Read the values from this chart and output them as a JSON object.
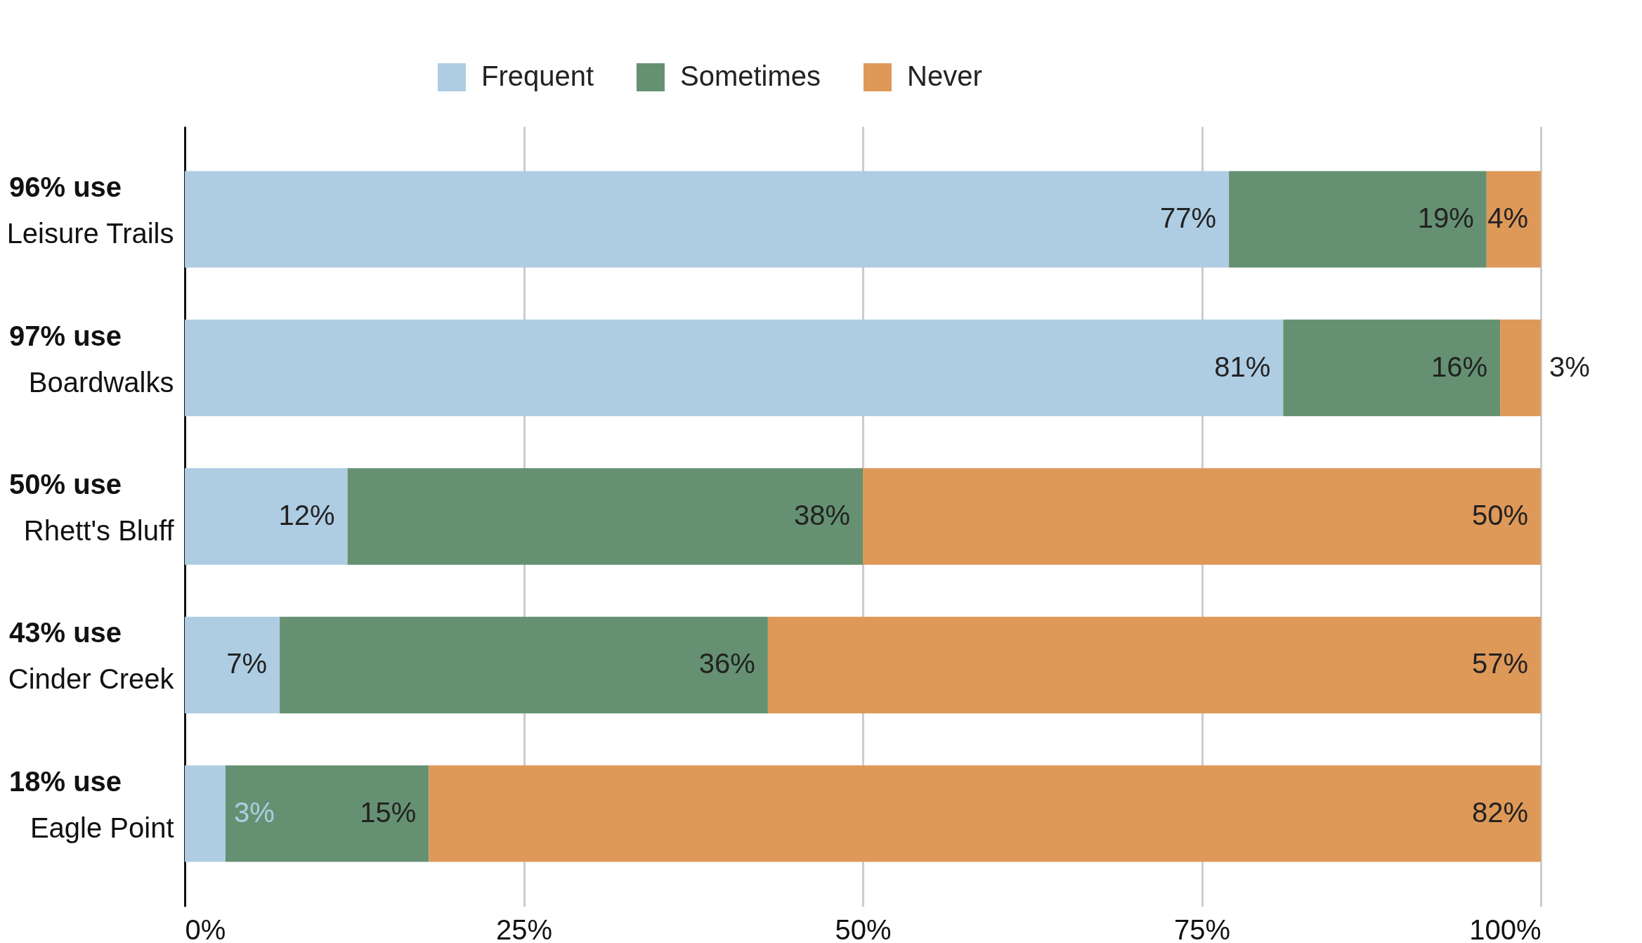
{
  "chart_data": {
    "type": "bar",
    "orientation": "horizontal",
    "stacked": true,
    "categories": [
      "Leisure Trails",
      "Boardwalks",
      "Rhett's Bluff",
      "Cinder Creek",
      "Eagle Point"
    ],
    "series": [
      {
        "name": "Frequent",
        "color": "#aecde3",
        "values": [
          77,
          81,
          12,
          7,
          3
        ]
      },
      {
        "name": "Sometimes",
        "color": "#659172",
        "values": [
          19,
          16,
          38,
          36,
          15
        ]
      },
      {
        "name": "Never",
        "color": "#de9858",
        "values": [
          4,
          3,
          50,
          57,
          82
        ]
      }
    ],
    "xlim": [
      0,
      100
    ],
    "xticks": [
      {
        "value": 0,
        "label": "0%"
      },
      {
        "value": 25,
        "label": "25%"
      },
      {
        "value": 50,
        "label": "50%"
      },
      {
        "value": 75,
        "label": "75%"
      },
      {
        "value": 100,
        "label": "100%"
      }
    ],
    "value_labels": [
      [
        "77%",
        "81%",
        "12%",
        "7%",
        "3%"
      ],
      [
        "19%",
        "16%",
        "38%",
        "36%",
        "15%"
      ],
      [
        "4%",
        "3%",
        "50%",
        "57%",
        "82%"
      ]
    ],
    "annotations": [
      "96% use",
      "97% use",
      "50% use",
      "43% use",
      "18% use"
    ],
    "grid": "x",
    "legend": "top"
  }
}
